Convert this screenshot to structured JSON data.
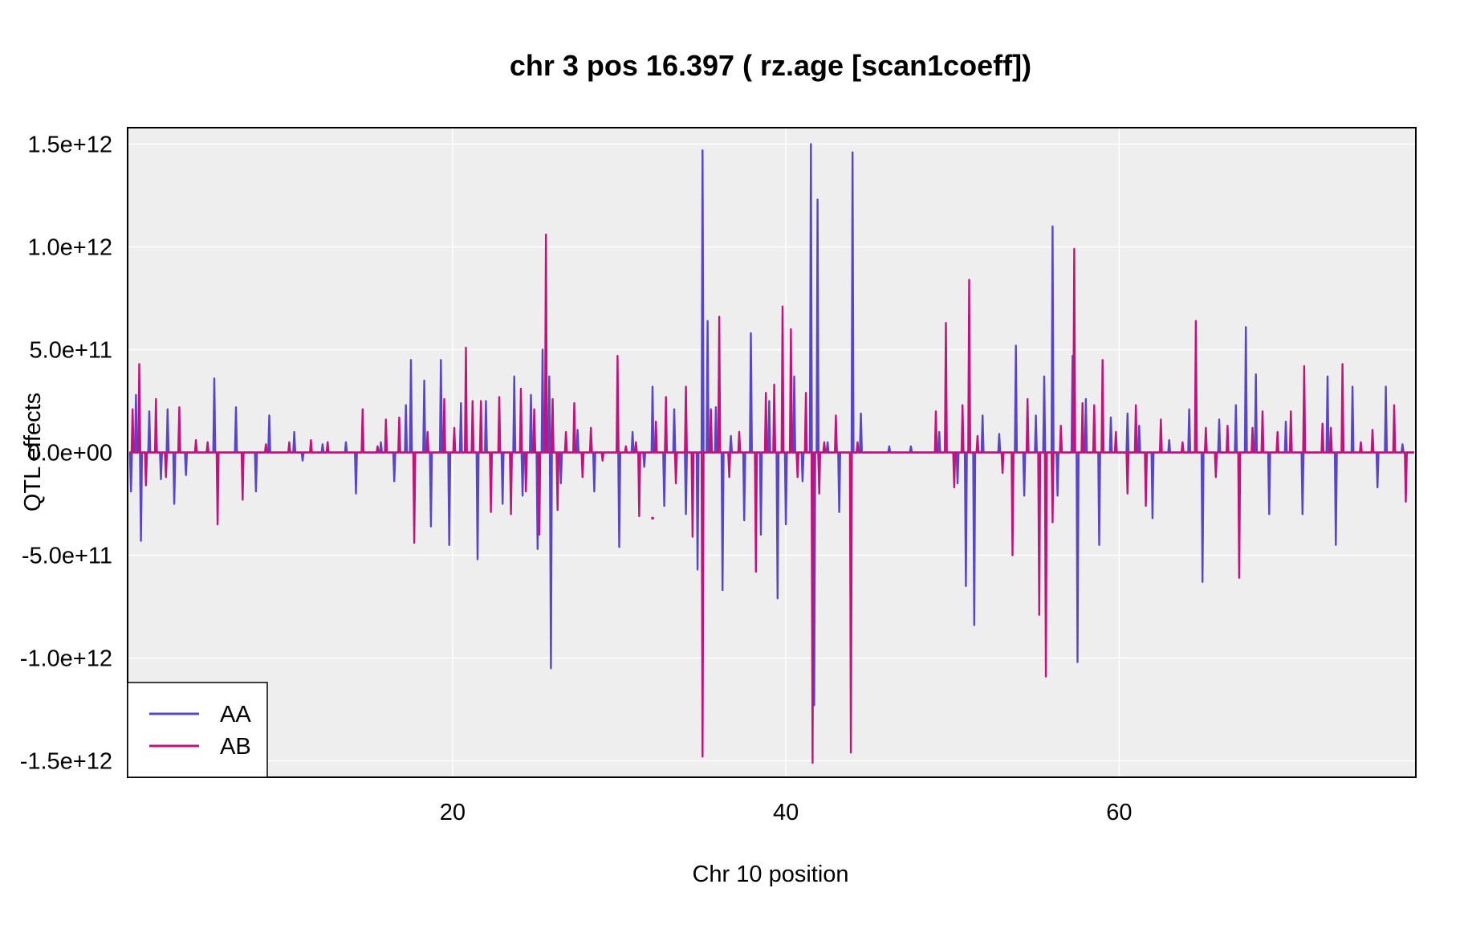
{
  "chart_data": {
    "type": "line",
    "title": "chr 3 pos 16.397 ( rz.age  [scan1coeff])",
    "xlabel": "Chr 10 position",
    "ylabel": "QTL effects",
    "xlim": [
      0.5,
      77.8
    ],
    "ylim": [
      -1580000000000.0,
      1580000000000.0
    ],
    "x_ticks": [
      20,
      40,
      60
    ],
    "x_tick_labels": [
      "20",
      "40",
      "60"
    ],
    "y_ticks": [
      -1500000000000.0,
      -1000000000000.0,
      -500000000000.0,
      0,
      500000000000.0,
      1000000000000.0,
      1500000000000.0
    ],
    "y_tick_labels": [
      "-1.5e+12",
      "-1.0e+12",
      "-5.0e+11",
      "0.0e+00",
      "5.0e+11",
      "1.0e+12",
      "1.5e+12"
    ],
    "grid": true,
    "background": "#eeeeee",
    "legend_position": "bottom-left",
    "series": [
      {
        "name": "AA",
        "color": "#5a45c8",
        "spikes": [
          [
            0.7,
            -190000000000.0
          ],
          [
            1.0,
            280000000000.0
          ],
          [
            1.3,
            -430000000000.0
          ],
          [
            1.8,
            200000000000.0
          ],
          [
            2.5,
            -130000000000.0
          ],
          [
            2.9,
            210000000000.0
          ],
          [
            3.3,
            -250000000000.0
          ],
          [
            4.0,
            -110000000000.0
          ],
          [
            5.7,
            360000000000.0
          ],
          [
            7.0,
            220000000000.0
          ],
          [
            8.2,
            -190000000000.0
          ],
          [
            9.0,
            180000000000.0
          ],
          [
            10.5,
            100000000000.0
          ],
          [
            11.0,
            -40000000000.0
          ],
          [
            12.2,
            40000000000.0
          ],
          [
            13.6,
            50000000000.0
          ],
          [
            14.2,
            -200000000000.0
          ],
          [
            15.7,
            50000000000.0
          ],
          [
            16.5,
            -140000000000.0
          ],
          [
            17.2,
            230000000000.0
          ],
          [
            17.5,
            450000000000.0
          ],
          [
            18.3,
            350000000000.0
          ],
          [
            18.7,
            -360000000000.0
          ],
          [
            19.3,
            450000000000.0
          ],
          [
            19.8,
            -450000000000.0
          ],
          [
            20.5,
            240000000000.0
          ],
          [
            21.5,
            -520000000000.0
          ],
          [
            22.0,
            250000000000.0
          ],
          [
            23.0,
            -250000000000.0
          ],
          [
            23.7,
            370000000000.0
          ],
          [
            24.2,
            -210000000000.0
          ],
          [
            24.7,
            280000000000.0
          ],
          [
            25.1,
            -470000000000.0
          ],
          [
            25.4,
            500000000000.0
          ],
          [
            25.8,
            370000000000.0
          ],
          [
            25.9,
            -1050000000000.0
          ],
          [
            26.5,
            -150000000000.0
          ],
          [
            27.5,
            110000000000.0
          ],
          [
            28.5,
            -190000000000.0
          ],
          [
            30.0,
            -460000000000.0
          ],
          [
            30.8,
            100000000000.0
          ],
          [
            31.5,
            -70000000000.0
          ],
          [
            32.0,
            320000000000.0
          ],
          [
            32.7,
            -260000000000.0
          ],
          [
            33.3,
            210000000000.0
          ],
          [
            34.0,
            -300000000000.0
          ],
          [
            34.7,
            -570000000000.0
          ],
          [
            35.0,
            1470000000000.0
          ],
          [
            35.3,
            640000000000.0
          ],
          [
            35.8,
            220000000000.0
          ],
          [
            36.2,
            -670000000000.0
          ],
          [
            36.7,
            80000000000.0
          ],
          [
            37.5,
            -330000000000.0
          ],
          [
            37.9,
            580000000000.0
          ],
          [
            38.5,
            -400000000000.0
          ],
          [
            39.0,
            250000000000.0
          ],
          [
            39.5,
            -710000000000.0
          ],
          [
            40.0,
            -350000000000.0
          ],
          [
            40.5,
            370000000000.0
          ],
          [
            41.0,
            -140000000000.0
          ],
          [
            41.5,
            1500000000000.0
          ],
          [
            41.7,
            -1230000000000.0
          ],
          [
            41.9,
            1230000000000.0
          ],
          [
            42.5,
            50000000000.0
          ],
          [
            43.2,
            -290000000000.0
          ],
          [
            44.0,
            1460000000000.0
          ],
          [
            44.5,
            190000000000.0
          ],
          [
            46.2,
            30000000000.0
          ],
          [
            47.5,
            30000000000.0
          ],
          [
            49.2,
            100000000000.0
          ],
          [
            50.3,
            -150000000000.0
          ],
          [
            50.8,
            -650000000000.0
          ],
          [
            51.3,
            -840000000000.0
          ],
          [
            51.8,
            180000000000.0
          ],
          [
            52.8,
            90000000000.0
          ],
          [
            53.8,
            520000000000.0
          ],
          [
            54.3,
            -210000000000.0
          ],
          [
            55.0,
            180000000000.0
          ],
          [
            55.5,
            370000000000.0
          ],
          [
            56.0,
            1100000000000.0
          ],
          [
            56.3,
            -210000000000.0
          ],
          [
            57.2,
            470000000000.0
          ],
          [
            57.5,
            -1020000000000.0
          ],
          [
            58.0,
            260000000000.0
          ],
          [
            58.8,
            -450000000000.0
          ],
          [
            59.5,
            170000000000.0
          ],
          [
            60.5,
            190000000000.0
          ],
          [
            61.2,
            130000000000.0
          ],
          [
            62.0,
            -320000000000.0
          ],
          [
            63.0,
            60000000000.0
          ],
          [
            64.2,
            210000000000.0
          ],
          [
            65.0,
            -630000000000.0
          ],
          [
            66.0,
            160000000000.0
          ],
          [
            67.0,
            230000000000.0
          ],
          [
            67.6,
            610000000000.0
          ],
          [
            68.2,
            380000000000.0
          ],
          [
            69.0,
            -300000000000.0
          ],
          [
            70.0,
            150000000000.0
          ],
          [
            71.0,
            -300000000000.0
          ],
          [
            72.5,
            370000000000.0
          ],
          [
            73.0,
            -450000000000.0
          ],
          [
            74.0,
            320000000000.0
          ],
          [
            75.5,
            -170000000000.0
          ],
          [
            76.0,
            320000000000.0
          ],
          [
            77.0,
            40000000000.0
          ]
        ]
      },
      {
        "name": "AB",
        "color": "#c4117b",
        "spikes": [
          [
            0.8,
            210000000000.0
          ],
          [
            1.2,
            430000000000.0
          ],
          [
            1.6,
            -160000000000.0
          ],
          [
            2.2,
            260000000000.0
          ],
          [
            2.8,
            -120000000000.0
          ],
          [
            3.6,
            220000000000.0
          ],
          [
            4.6,
            60000000000.0
          ],
          [
            5.3,
            50000000000.0
          ],
          [
            5.9,
            -350000000000.0
          ],
          [
            7.4,
            -230000000000.0
          ],
          [
            8.8,
            40000000000.0
          ],
          [
            10.2,
            50000000000.0
          ],
          [
            11.5,
            60000000000.0
          ],
          [
            12.5,
            50000000000.0
          ],
          [
            14.6,
            210000000000.0
          ],
          [
            15.5,
            30000000000.0
          ],
          [
            16.0,
            160000000000.0
          ],
          [
            16.8,
            170000000000.0
          ],
          [
            17.7,
            -440000000000.0
          ],
          [
            18.5,
            100000000000.0
          ],
          [
            19.5,
            260000000000.0
          ],
          [
            20.1,
            120000000000.0
          ],
          [
            20.8,
            510000000000.0
          ],
          [
            21.2,
            250000000000.0
          ],
          [
            21.7,
            250000000000.0
          ],
          [
            22.3,
            -290000000000.0
          ],
          [
            22.8,
            270000000000.0
          ],
          [
            23.5,
            -300000000000.0
          ],
          [
            24.1,
            310000000000.0
          ],
          [
            24.4,
            -190000000000.0
          ],
          [
            24.9,
            210000000000.0
          ],
          [
            25.2,
            -400000000000.0
          ],
          [
            25.6,
            1060000000000.0
          ],
          [
            26.0,
            260000000000.0
          ],
          [
            26.3,
            -280000000000.0
          ],
          [
            26.8,
            100000000000.0
          ],
          [
            27.3,
            240000000000.0
          ],
          [
            27.8,
            -120000000000.0
          ],
          [
            28.3,
            120000000000.0
          ],
          [
            29.0,
            -40000000000.0
          ],
          [
            29.9,
            470000000000.0
          ],
          [
            30.4,
            30000000000.0
          ],
          [
            31.0,
            50000000000.0
          ],
          [
            31.2,
            -310000000000.0
          ],
          [
            32.2,
            150000000000.0
          ],
          [
            32.8,
            270000000000.0
          ],
          [
            33.4,
            -150000000000.0
          ],
          [
            34.0,
            320000000000.0
          ],
          [
            34.4,
            -410000000000.0
          ],
          [
            35.0,
            -1480000000000.0
          ],
          [
            35.5,
            210000000000.0
          ],
          [
            36.0,
            660000000000.0
          ],
          [
            36.6,
            -120000000000.0
          ],
          [
            37.2,
            100000000000.0
          ],
          [
            38.2,
            -580000000000.0
          ],
          [
            38.8,
            290000000000.0
          ],
          [
            39.3,
            330000000000.0
          ],
          [
            39.8,
            710000000000.0
          ],
          [
            40.3,
            600000000000.0
          ],
          [
            40.7,
            -120000000000.0
          ],
          [
            41.2,
            290000000000.0
          ],
          [
            41.6,
            -1510000000000.0
          ],
          [
            42.0,
            -200000000000.0
          ],
          [
            42.3,
            50000000000.0
          ],
          [
            43.0,
            180000000000.0
          ],
          [
            43.9,
            -1460000000000.0
          ],
          [
            44.3,
            50000000000.0
          ],
          [
            49.0,
            200000000000.0
          ],
          [
            49.6,
            630000000000.0
          ],
          [
            50.1,
            -170000000000.0
          ],
          [
            50.6,
            230000000000.0
          ],
          [
            51.0,
            840000000000.0
          ],
          [
            51.5,
            80000000000.0
          ],
          [
            53.0,
            -100000000000.0
          ],
          [
            53.6,
            -500000000000.0
          ],
          [
            54.5,
            260000000000.0
          ],
          [
            55.2,
            -790000000000.0
          ],
          [
            55.6,
            -1090000000000.0
          ],
          [
            56.0,
            -340000000000.0
          ],
          [
            56.5,
            130000000000.0
          ],
          [
            57.3,
            990000000000.0
          ],
          [
            57.8,
            240000000000.0
          ],
          [
            58.5,
            230000000000.0
          ],
          [
            59.0,
            450000000000.0
          ],
          [
            59.8,
            100000000000.0
          ],
          [
            60.5,
            -200000000000.0
          ],
          [
            61.0,
            230000000000.0
          ],
          [
            61.6,
            -260000000000.0
          ],
          [
            62.5,
            160000000000.0
          ],
          [
            63.8,
            50000000000.0
          ],
          [
            64.6,
            640000000000.0
          ],
          [
            65.2,
            120000000000.0
          ],
          [
            65.8,
            -120000000000.0
          ],
          [
            66.5,
            130000000000.0
          ],
          [
            67.2,
            -610000000000.0
          ],
          [
            68.0,
            120000000000.0
          ],
          [
            68.6,
            200000000000.0
          ],
          [
            69.5,
            100000000000.0
          ],
          [
            70.3,
            200000000000.0
          ],
          [
            71.1,
            420000000000.0
          ],
          [
            72.2,
            140000000000.0
          ],
          [
            72.7,
            120000000000.0
          ],
          [
            73.4,
            430000000000.0
          ],
          [
            74.5,
            50000000000.0
          ],
          [
            75.2,
            110000000000.0
          ],
          [
            76.5,
            230000000000.0
          ],
          [
            77.2,
            -240000000000.0
          ]
        ]
      }
    ],
    "isolated_points": [
      [
        32.0,
        -320000000000.0
      ]
    ]
  }
}
